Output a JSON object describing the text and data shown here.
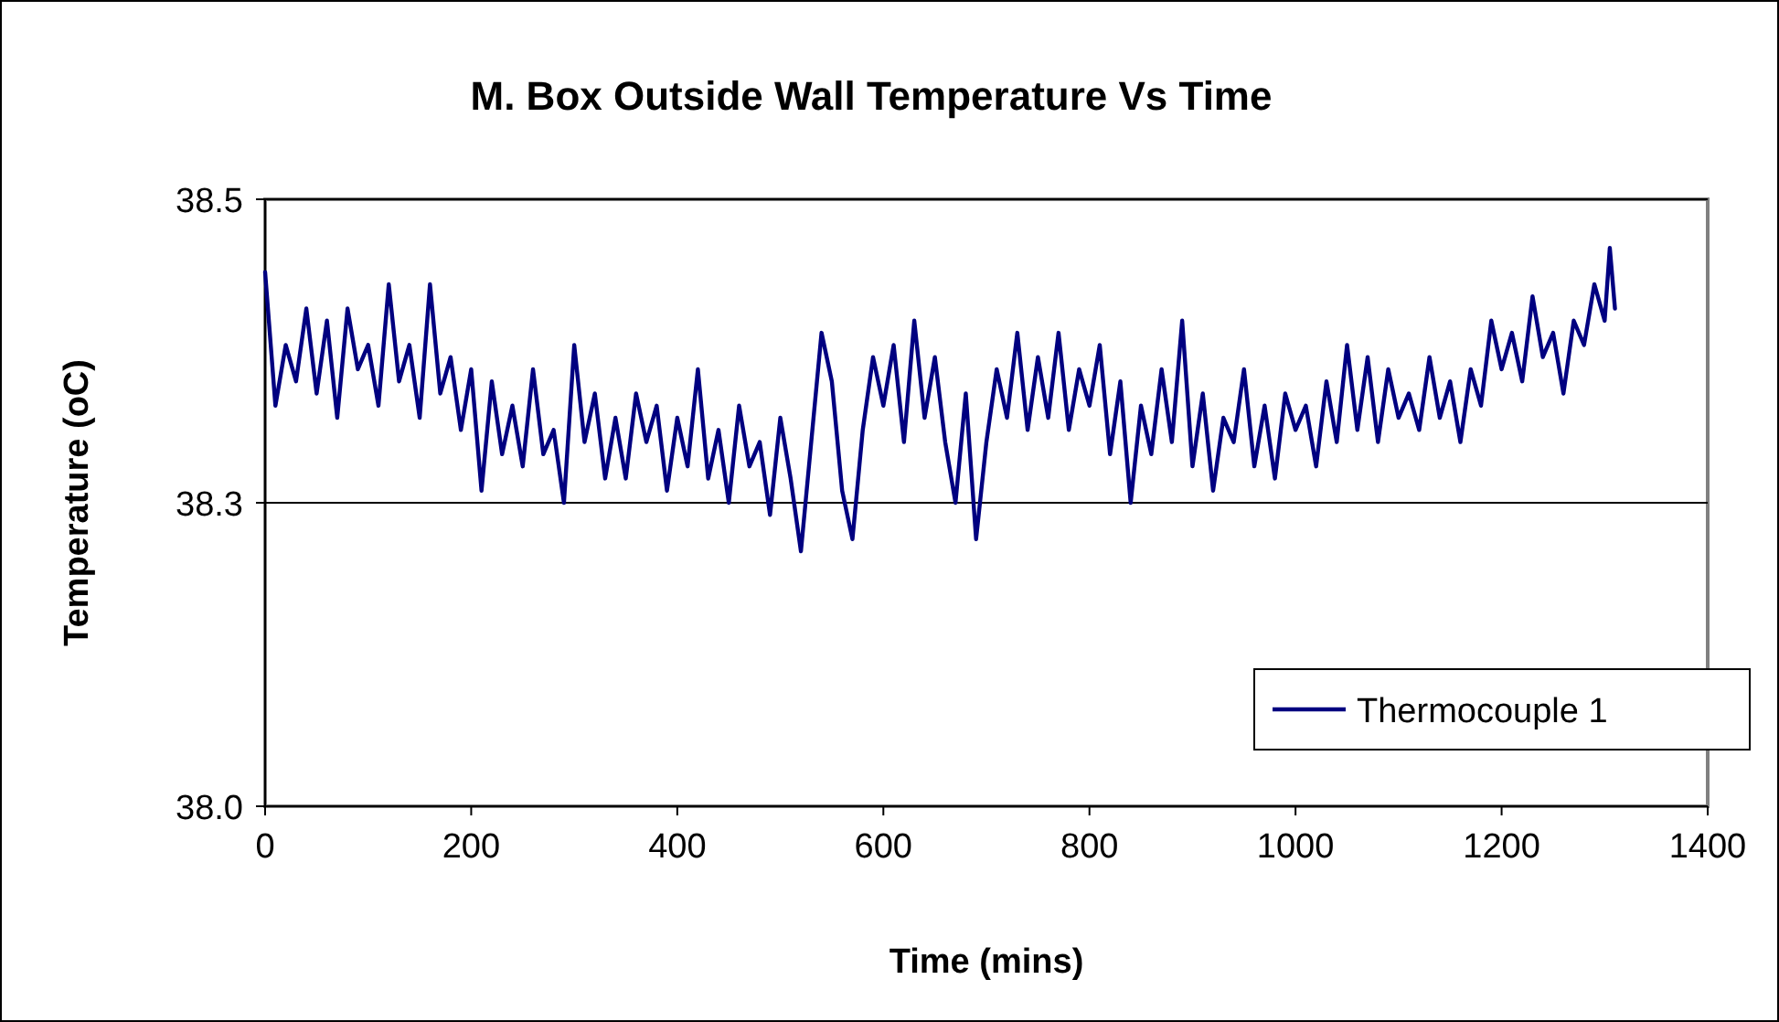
{
  "chart_data": {
    "type": "line",
    "title": "M. Box Outside Wall Temperature Vs Time",
    "xlabel": "Time (mins)",
    "ylabel": "Temperature (oC)",
    "xlim": [
      0,
      1400
    ],
    "xticks": [
      0,
      200,
      400,
      600,
      800,
      1000,
      1200,
      1400
    ],
    "ylim": [
      38.0,
      38.5
    ],
    "yticks": [
      {
        "value": 38.0,
        "label": "38.0"
      },
      {
        "value": 38.25,
        "label": "38.3"
      },
      {
        "value": 38.5,
        "label": "38.5"
      }
    ],
    "grid": "y",
    "legend": "bottom right",
    "marker": "none",
    "line_style": "solid",
    "x": [
      0,
      10,
      20,
      30,
      40,
      50,
      60,
      70,
      80,
      90,
      100,
      110,
      120,
      130,
      140,
      150,
      160,
      170,
      180,
      190,
      200,
      210,
      220,
      230,
      240,
      250,
      260,
      270,
      280,
      290,
      300,
      310,
      320,
      330,
      340,
      350,
      360,
      370,
      380,
      390,
      400,
      410,
      420,
      430,
      440,
      450,
      460,
      470,
      480,
      490,
      500,
      510,
      520,
      530,
      540,
      550,
      560,
      570,
      580,
      590,
      600,
      610,
      620,
      630,
      640,
      650,
      660,
      670,
      680,
      690,
      700,
      710,
      720,
      730,
      740,
      750,
      760,
      770,
      780,
      790,
      800,
      810,
      820,
      830,
      840,
      850,
      860,
      870,
      880,
      890,
      900,
      910,
      920,
      930,
      940,
      950,
      960,
      970,
      980,
      990,
      1000,
      1010,
      1020,
      1030,
      1040,
      1050,
      1060,
      1070,
      1080,
      1090,
      1100,
      1110,
      1120,
      1130,
      1140,
      1150,
      1160,
      1170,
      1180,
      1190,
      1200,
      1210,
      1220,
      1230,
      1240,
      1250,
      1260,
      1270,
      1280,
      1290,
      1300,
      1305,
      1310
    ],
    "series": [
      {
        "name": "Thermocouple 1",
        "color": "#000080",
        "values": [
          38.44,
          38.33,
          38.38,
          38.35,
          38.41,
          38.34,
          38.4,
          38.32,
          38.41,
          38.36,
          38.38,
          38.33,
          38.43,
          38.35,
          38.38,
          38.32,
          38.43,
          38.34,
          38.37,
          38.31,
          38.36,
          38.26,
          38.35,
          38.29,
          38.33,
          38.28,
          38.36,
          38.29,
          38.31,
          38.25,
          38.38,
          38.3,
          38.34,
          38.27,
          38.32,
          38.27,
          38.34,
          38.3,
          38.33,
          38.26,
          38.32,
          38.28,
          38.36,
          38.27,
          38.31,
          38.25,
          38.33,
          38.28,
          38.3,
          38.24,
          38.32,
          38.27,
          38.21,
          38.3,
          38.39,
          38.35,
          38.26,
          38.22,
          38.31,
          38.37,
          38.33,
          38.38,
          38.3,
          38.4,
          38.32,
          38.37,
          38.3,
          38.25,
          38.34,
          38.22,
          38.3,
          38.36,
          38.32,
          38.39,
          38.31,
          38.37,
          38.32,
          38.39,
          38.31,
          38.36,
          38.33,
          38.38,
          38.29,
          38.35,
          38.25,
          38.33,
          38.29,
          38.36,
          38.3,
          38.4,
          38.28,
          38.34,
          38.26,
          38.32,
          38.3,
          38.36,
          38.28,
          38.33,
          38.27,
          38.34,
          38.31,
          38.33,
          38.28,
          38.35,
          38.3,
          38.38,
          38.31,
          38.37,
          38.3,
          38.36,
          38.32,
          38.34,
          38.31,
          38.37,
          38.32,
          38.35,
          38.3,
          38.36,
          38.33,
          38.4,
          38.36,
          38.39,
          38.35,
          38.42,
          38.37,
          38.39,
          38.34,
          38.4,
          38.38,
          38.43,
          38.4,
          38.46,
          38.41
        ]
      }
    ]
  }
}
